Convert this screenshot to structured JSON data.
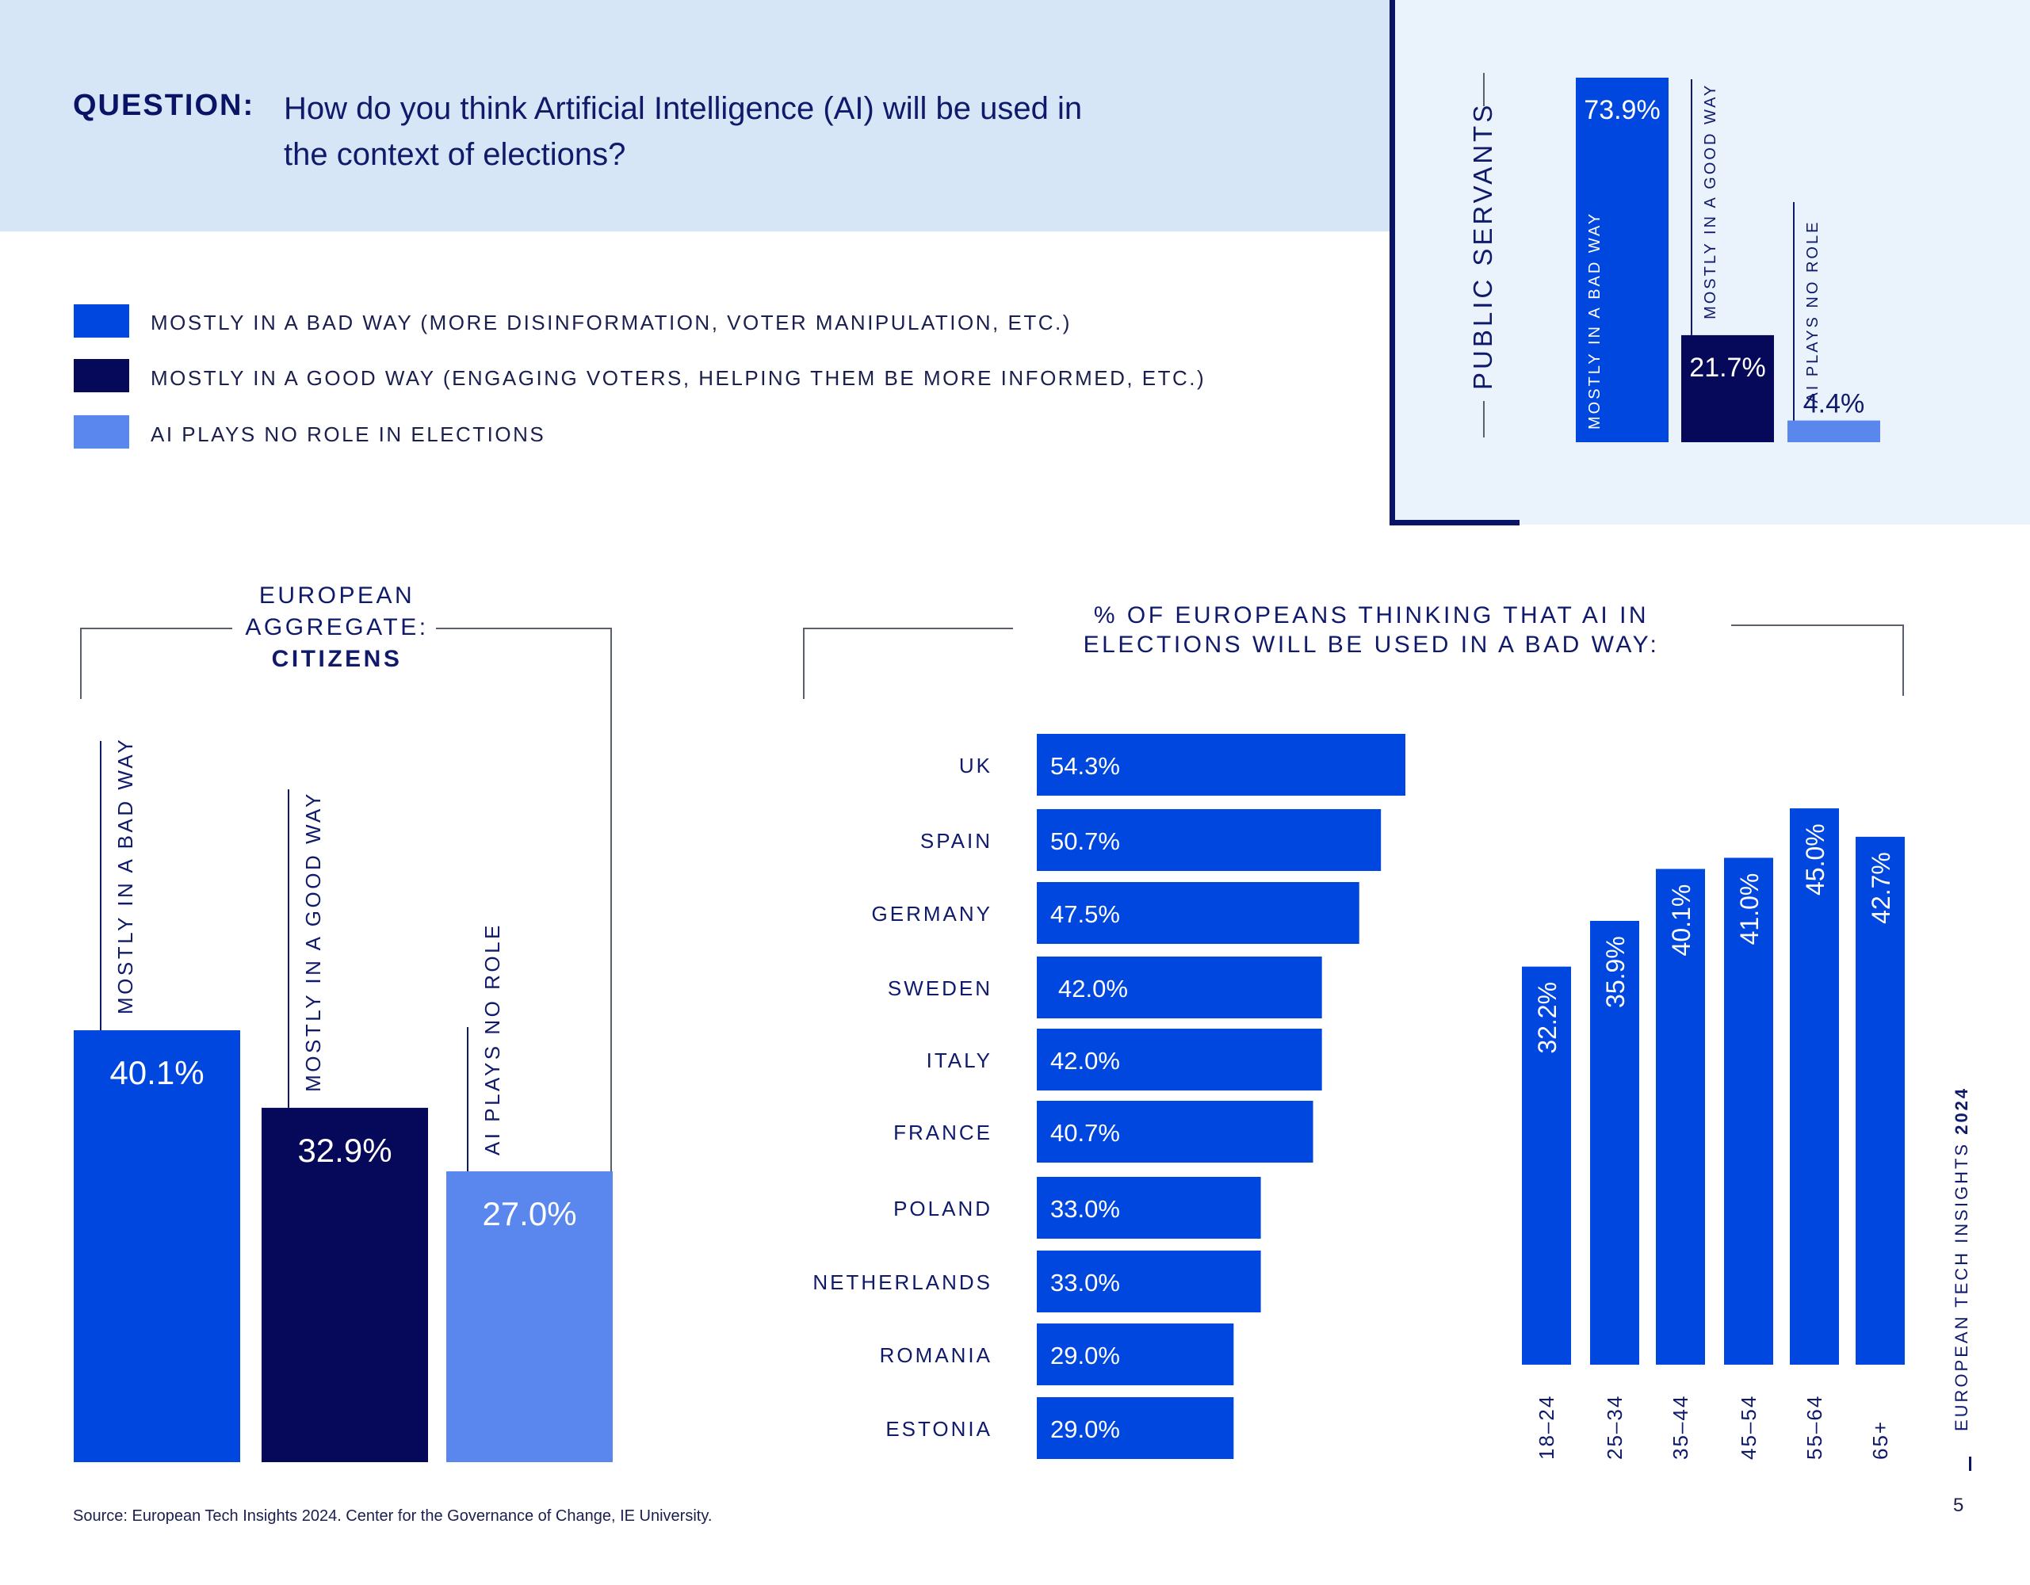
{
  "question": {
    "label": "QUESTION:",
    "line1": "How do you think Artificial Intelligence (AI) will be used in",
    "line2": "the context of elections?"
  },
  "legend": [
    {
      "label": "MOSTLY IN A BAD WAY (MORE DISINFORMATION, VOTER MANIPULATION, ETC.)",
      "color": "#0047e0"
    },
    {
      "label": "MOSTLY IN A GOOD WAY (ENGAGING VOTERS, HELPING THEM BE MORE INFORMED, ETC.)",
      "color": "#06095a"
    },
    {
      "label": "AI PLAYS NO ROLE IN ELECTIONS",
      "color": "#5a87ee"
    }
  ],
  "citizens_title": {
    "line1": "EUROPEAN",
    "line2": "AGGREGATE:",
    "line3": "CITIZENS"
  },
  "countries_title": {
    "line1": "% OF EUROPEANS THINKING THAT AI IN",
    "line2": "ELECTIONS WILL BE USED IN A BAD WAY:"
  },
  "public_servants_title": "PUBLIC SERVANTS",
  "side_text": {
    "main": "EUROPEAN TECH INSIGHTS ",
    "year": "2024"
  },
  "page_number": "5",
  "source": "Source: European Tech Insights 2024. Center for the Governance of Change, IE University.",
  "chart_data": [
    {
      "type": "bar",
      "title": "EUROPEAN AGGREGATE: CITIZENS",
      "categories": [
        "MOSTLY IN A BAD WAY",
        "MOSTLY IN A GOOD WAY",
        "AI PLAYS NO ROLE"
      ],
      "values": [
        40.1,
        32.9,
        27.0
      ],
      "labels": [
        "40.1%",
        "32.9%",
        "27.0%"
      ],
      "colors": [
        "#0047e0",
        "#06095a",
        "#5a87ee"
      ],
      "ylim": [
        0,
        40.1
      ]
    },
    {
      "type": "bar",
      "title": "PUBLIC SERVANTS",
      "categories": [
        "MOSTLY IN A BAD WAY",
        "MOSTLY IN A GOOD WAY",
        "AI PLAYS NO ROLE"
      ],
      "values": [
        73.9,
        21.7,
        4.4
      ],
      "labels": [
        "73.9%",
        "21.7%",
        "4.4%"
      ],
      "colors": [
        "#0047e0",
        "#06095a",
        "#5a87ee"
      ],
      "ylim": [
        0,
        73.9
      ]
    },
    {
      "type": "bar",
      "orientation": "horizontal",
      "title": "% OF EUROPEANS THINKING THAT AI IN ELECTIONS WILL BE USED IN A BAD WAY:",
      "categories": [
        "UK",
        "SPAIN",
        "GERMANY",
        "SWEDEN",
        "ITALY",
        "FRANCE",
        "POLAND",
        "NETHERLANDS",
        "ROMANIA",
        "ESTONIA"
      ],
      "values": [
        54.3,
        50.7,
        47.5,
        42.0,
        42.0,
        40.7,
        33.0,
        33.0,
        29.0,
        29.0
      ],
      "labels": [
        "54.3%",
        "50.7%",
        "47.5%",
        "42.0%",
        "42.0%",
        "40.7%",
        "33.0%",
        "33.0%",
        "29.0%",
        "29.0%"
      ],
      "color": "#0047e0",
      "xlim": [
        0,
        54.3
      ]
    },
    {
      "type": "bar",
      "categories": [
        "18–24",
        "25–34",
        "35–44",
        "45–54",
        "55–64",
        "65+"
      ],
      "values": [
        32.2,
        35.9,
        40.1,
        41.0,
        45.0,
        42.7
      ],
      "labels": [
        "32.2%",
        "35.9%",
        "40.1%",
        "41.0%",
        "45.0%",
        "42.7%"
      ],
      "color": "#0047e0",
      "ylim": [
        0,
        45.0
      ]
    }
  ]
}
